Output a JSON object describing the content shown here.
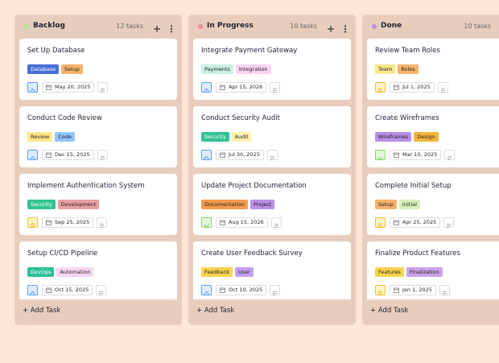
{
  "add_task_label": "Add Task",
  "columns": [
    {
      "title": "Backlog",
      "count": "12 tasks",
      "color": "#b6e3a0",
      "tasks": [
        {
          "title": "Set Up Database",
          "tags": [
            {
              "label": "Database",
              "color": "#4a6fd6"
            },
            {
              "label": "Setup",
              "color": "#f6b26b"
            }
          ],
          "date": "May 20, 2025",
          "priority": "up"
        },
        {
          "title": "Conduct Code Review",
          "tags": [
            {
              "label": "Review",
              "color": "#fde68a"
            },
            {
              "label": "Code",
              "color": "#93c5fd"
            }
          ],
          "date": "Dec 15, 2025",
          "priority": "up"
        },
        {
          "title": "Implement Authentication System",
          "tags": [
            {
              "label": "Security",
              "color": "#34c38f"
            },
            {
              "label": "Development",
              "color": "#e8a0a0"
            }
          ],
          "date": "Sep 25, 2025",
          "priority": "double-up"
        },
        {
          "title": "Setup CI/CD Pipeline",
          "tags": [
            {
              "label": "DevOps",
              "color": "#2ebf9a"
            },
            {
              "label": "Automation",
              "color": "#f7d6f2"
            }
          ],
          "date": "Oct 15, 2025",
          "priority": "up"
        }
      ]
    },
    {
      "title": "In Progress",
      "count": "10 tasks",
      "color": "#f28b9b",
      "tasks": [
        {
          "title": "Integrate Payment Gateway",
          "tags": [
            {
              "label": "Payments",
              "color": "#c9f0e4"
            },
            {
              "label": "Integration",
              "color": "#f9d3f0"
            }
          ],
          "date": "Apr 15, 2026",
          "priority": "up"
        },
        {
          "title": "Conduct Security Audit",
          "tags": [
            {
              "label": "Security",
              "color": "#34c38f"
            },
            {
              "label": "Audit",
              "color": "#fdf2b0"
            }
          ],
          "date": "Jul 30, 2025",
          "priority": "up"
        },
        {
          "title": "Update Project Documentation",
          "tags": [
            {
              "label": "Documentation",
              "color": "#f39a4b"
            },
            {
              "label": "Project",
              "color": "#b98ee6"
            }
          ],
          "date": "Aug 15, 2026",
          "priority": "down"
        },
        {
          "title": "Create User Feedback Survey",
          "tags": [
            {
              "label": "Feedback",
              "color": "#fcd34d"
            },
            {
              "label": "User",
              "color": "#c4a0f0"
            }
          ],
          "date": "Oct 10, 2025",
          "priority": "up"
        }
      ]
    },
    {
      "title": "Done",
      "count": "10 tasks",
      "color": "#b48ee8",
      "tasks": [
        {
          "title": "Review Team Roles",
          "tags": [
            {
              "label": "Team",
              "color": "#fde68a"
            },
            {
              "label": "Roles",
              "color": "#f6b26b"
            }
          ],
          "date": "Jul 1, 2025",
          "priority": "double-up"
        },
        {
          "title": "Create Wireframes",
          "tags": [
            {
              "label": "Wireframes",
              "color": "#b98ee6"
            },
            {
              "label": "Design",
              "color": "#f5b53b"
            }
          ],
          "date": "Mar 10, 2025",
          "priority": "down"
        },
        {
          "title": "Complete Initial Setup",
          "tags": [
            {
              "label": "Setup",
              "color": "#f6b26b"
            },
            {
              "label": "Initial",
              "color": "#d4f0b8"
            }
          ],
          "date": "Apr 25, 2025",
          "priority": "double-up"
        },
        {
          "title": "Finalize Product Features",
          "tags": [
            {
              "label": "Features",
              "color": "#fcd34d"
            },
            {
              "label": "Finalization",
              "color": "#c9a4ea"
            }
          ],
          "date": "Jan 1, 2025",
          "priority": "double-up"
        }
      ]
    }
  ]
}
